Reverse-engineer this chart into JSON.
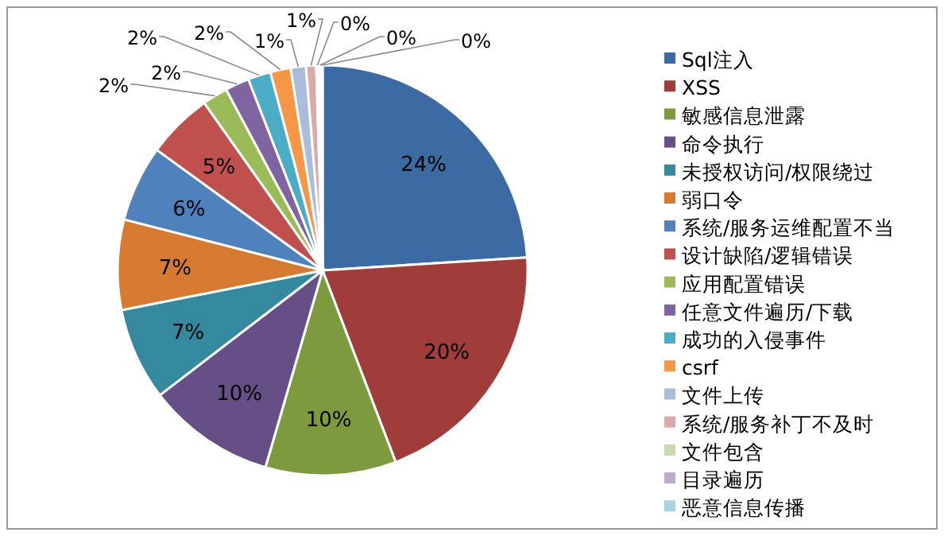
{
  "chart_data": {
    "type": "pie",
    "legend": "right",
    "categories": [
      "Sql注入",
      "XSS",
      "敏感信息泄露",
      "命令执行",
      "未授权访问/权限绕过",
      "弱口令",
      "系统/服务运维配置不当",
      "设计缺陷/逻辑错误",
      "应用配置错误",
      "任意文件遍历/下载",
      "成功的入侵事件",
      "csrf",
      "文件上传",
      "系统/服务补丁不及时",
      "文件包含",
      "目录遍历",
      "恶意信息传播"
    ],
    "values": [
      24.0,
      20.2,
      10.3,
      10.1,
      7.3,
      7.1,
      6.0,
      5.2,
      2.0,
      1.9,
      1.8,
      1.6,
      1.2,
      0.8,
      0.2,
      0.2,
      0.1
    ],
    "value_labels": [
      "24%",
      "20%",
      "10%",
      "10%",
      "7%",
      "7%",
      "6%",
      "5%",
      "2%",
      "2%",
      "2%",
      "2%",
      "1%",
      "1%",
      "0%",
      "0%",
      "0%"
    ],
    "colors": [
      "#3c6aa2",
      "#a03c3a",
      "#7e9a3e",
      "#664e86",
      "#35899f",
      "#d57a30",
      "#4f81bd",
      "#c0504d",
      "#9bbb59",
      "#8064a2",
      "#4bacc6",
      "#f79646",
      "#a9bcdb",
      "#dba9a8",
      "#c8d9ab",
      "#bbadcb",
      "#a8d3e2"
    ]
  }
}
